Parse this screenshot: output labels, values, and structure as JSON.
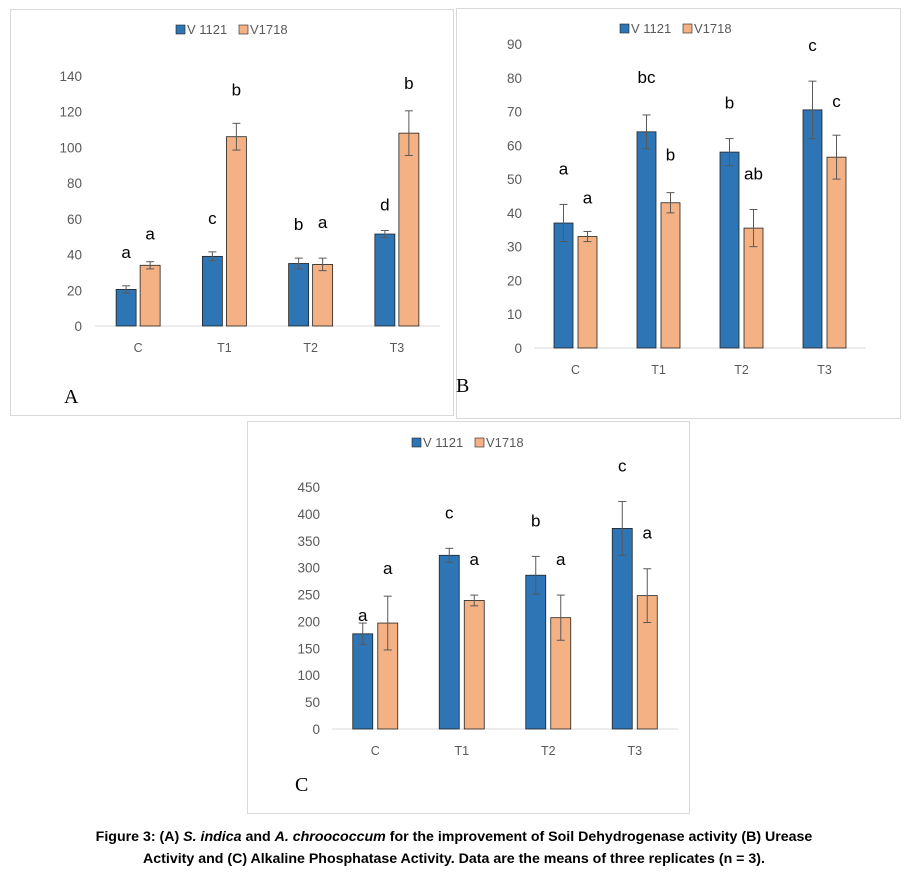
{
  "colors": {
    "series1": "#2E75B6",
    "series2": "#F4B183",
    "bar_stroke": "#222222",
    "error": "#595959",
    "axis": "#D9D9D9"
  },
  "chart_data": [
    {
      "type": "bar",
      "panel_label": "A",
      "categories": [
        "C",
        "T1",
        "T2",
        "T3"
      ],
      "series": [
        {
          "name": "V 1121",
          "values": [
            20.5,
            39,
            35,
            51.5
          ],
          "errors": [
            2,
            2.5,
            3,
            2
          ],
          "letters": [
            "a",
            "c",
            "b",
            "d"
          ]
        },
        {
          "name": "V1718",
          "values": [
            34,
            106,
            34.5,
            108
          ],
          "errors": [
            2,
            7.5,
            3.5,
            12.5
          ],
          "letters": [
            "a",
            "b",
            "a",
            "b"
          ]
        }
      ],
      "yticks": [
        0,
        20,
        40,
        60,
        80,
        100,
        120,
        140
      ],
      "ylim": [
        0,
        140
      ],
      "title": "",
      "xlabel": "",
      "ylabel": "",
      "grid": false,
      "legend": "top-center"
    },
    {
      "type": "bar",
      "panel_label": "B",
      "categories": [
        "C",
        "T1",
        "T2",
        "T3"
      ],
      "series": [
        {
          "name": "V 1121",
          "values": [
            37,
            64,
            58,
            70.5
          ],
          "errors": [
            5.5,
            5,
            4,
            8.5
          ],
          "letters": [
            "a",
            "bc",
            "b",
            "c"
          ]
        },
        {
          "name": "V1718",
          "values": [
            33,
            43,
            35.5,
            56.5
          ],
          "errors": [
            1.5,
            3,
            5.5,
            6.5
          ],
          "letters": [
            "a",
            "b",
            "ab",
            "c"
          ]
        }
      ],
      "yticks": [
        0,
        10,
        20,
        30,
        40,
        50,
        60,
        70,
        80,
        90
      ],
      "ylim": [
        0,
        90
      ],
      "title": "",
      "xlabel": "",
      "ylabel": "",
      "grid": false,
      "legend": "top-center"
    },
    {
      "type": "bar",
      "panel_label": "C",
      "categories": [
        "C",
        "T1",
        "T2",
        "T3"
      ],
      "series": [
        {
          "name": "V 1121",
          "values": [
            177,
            323,
            286,
            373
          ],
          "errors": [
            20,
            13,
            35,
            50
          ],
          "letters": [
            "a",
            "c",
            "b",
            "c"
          ]
        },
        {
          "name": "V1718",
          "values": [
            197,
            239,
            207,
            248
          ],
          "errors": [
            50,
            10,
            42,
            50
          ],
          "letters": [
            "a",
            "a",
            "a",
            "a"
          ]
        }
      ],
      "yticks": [
        0,
        50,
        100,
        150,
        200,
        250,
        300,
        350,
        400,
        450
      ],
      "ylim": [
        0,
        450
      ],
      "title": "",
      "xlabel": "",
      "ylabel": "",
      "grid": false,
      "legend": "top-center"
    }
  ],
  "caption": {
    "prefix": "Figure 3: (A) ",
    "species1": "S. indica",
    "and": " and ",
    "species2": "A. chroococcum",
    "line1_rest": " for the improvement of Soil Dehydrogenase activity (B) Urease",
    "line2": "Activity and (C) Alkaline Phosphatase Activity. Data are the means of three replicates (n = 3)."
  }
}
